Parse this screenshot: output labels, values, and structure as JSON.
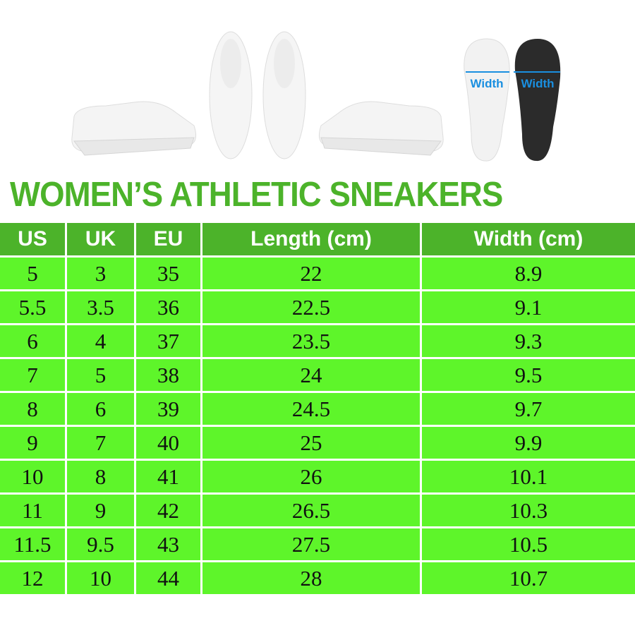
{
  "title": "WOMEN’S ATHLETIC SNEAKERS",
  "sole_labels": [
    "Width",
    "Width"
  ],
  "colors": {
    "header_bg": "#4cb32a",
    "row_bg": "#5ef52a",
    "title": "#4cb32a",
    "width_label": "#1a8fe0"
  },
  "table": {
    "headers": [
      "US",
      "UK",
      "EU",
      "Length (cm)",
      "Width (cm)"
    ],
    "rows": [
      [
        "5",
        "3",
        "35",
        "22",
        "8.9"
      ],
      [
        "5.5",
        "3.5",
        "36",
        "22.5",
        "9.1"
      ],
      [
        "6",
        "4",
        "37",
        "23.5",
        "9.3"
      ],
      [
        "7",
        "5",
        "38",
        "24",
        "9.5"
      ],
      [
        "8",
        "6",
        "39",
        "24.5",
        "9.7"
      ],
      [
        "9",
        "7",
        "40",
        "25",
        "9.9"
      ],
      [
        "10",
        "8",
        "41",
        "26",
        "10.1"
      ],
      [
        "11",
        "9",
        "42",
        "26.5",
        "10.3"
      ],
      [
        "11.5",
        "9.5",
        "43",
        "27.5",
        "10.5"
      ],
      [
        "12",
        "10",
        "44",
        "28",
        "10.7"
      ]
    ]
  }
}
